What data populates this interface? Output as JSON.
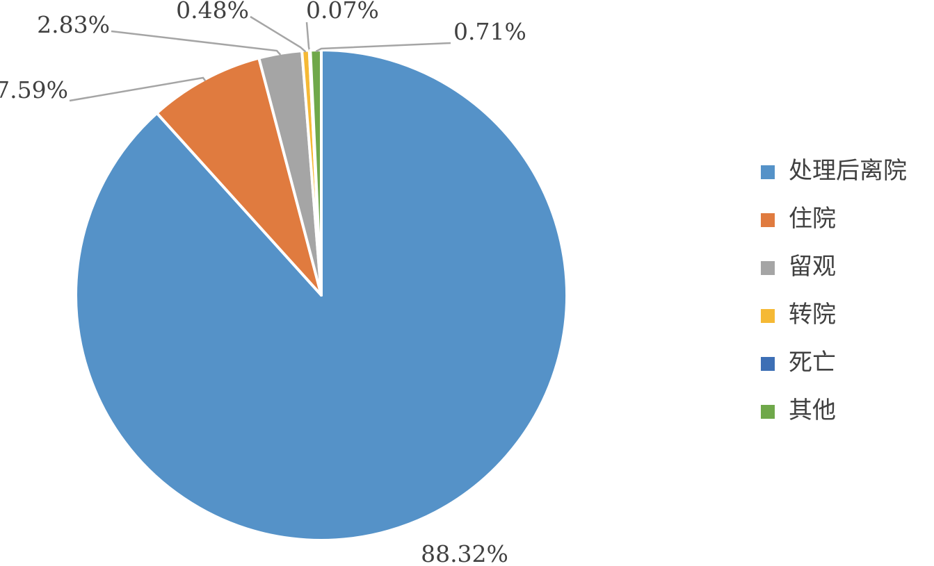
{
  "chart_data": {
    "type": "pie",
    "categories": [
      "处理后离院",
      "住院",
      "留观",
      "转院",
      "死亡",
      "其他"
    ],
    "values": [
      88.32,
      7.59,
      2.83,
      0.48,
      0.07,
      0.71
    ],
    "value_labels": [
      "88.32%",
      "7.59%",
      "2.83%",
      "0.48%",
      "0.07%",
      "0.71%"
    ],
    "colors": [
      "#5592c8",
      "#e07b3f",
      "#a5a5a5",
      "#f5b935",
      "#3d6fb5",
      "#6fa84a"
    ],
    "legend": "right"
  }
}
